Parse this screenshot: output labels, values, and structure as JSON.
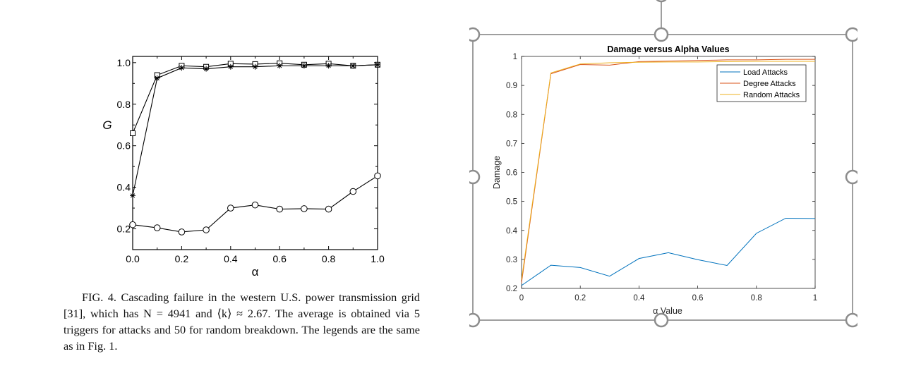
{
  "figure_caption": "FIG. 4. Cascading failure in the western U.S. power transmission grid [31], which has N = 4941 and ⟨k⟩ ≈ 2.67. The average is obtained via 5 triggers for attacks and 50 for random breakdown. The legends are the same as in Fig. 1.",
  "chart_data": [
    {
      "type": "line",
      "title": "",
      "xlabel": "α",
      "ylabel": "G",
      "xlim": [
        0,
        1
      ],
      "ylim": [
        0.1,
        1.03
      ],
      "xticks": [
        "0.0",
        "0.2",
        "0.4",
        "0.6",
        "0.8",
        "1.0"
      ],
      "yticks": [
        "0.2",
        "0.4",
        "0.6",
        "0.8",
        "1.0"
      ],
      "x": [
        0.0,
        0.1,
        0.2,
        0.3,
        0.4,
        0.5,
        0.6,
        0.7,
        0.8,
        0.9,
        1.0
      ],
      "series": [
        {
          "marker": "square",
          "values": [
            0.66,
            0.94,
            0.985,
            0.98,
            0.995,
            0.993,
            0.997,
            0.99,
            0.995,
            0.985,
            0.99
          ]
        },
        {
          "marker": "star",
          "values": [
            0.36,
            0.925,
            0.975,
            0.97,
            0.98,
            0.98,
            0.985,
            0.985,
            0.985,
            0.985,
            0.99
          ]
        },
        {
          "marker": "circle",
          "values": [
            0.22,
            0.205,
            0.185,
            0.195,
            0.3,
            0.315,
            0.295,
            0.297,
            0.295,
            0.38,
            0.455
          ]
        }
      ]
    },
    {
      "type": "line",
      "title": "Damage versus Alpha Values",
      "xlabel": "α Value",
      "ylabel": "Damage",
      "xlim": [
        0,
        1
      ],
      "ylim": [
        0.2,
        1
      ],
      "xticks": [
        "0",
        "0.2",
        "0.4",
        "0.6",
        "0.8",
        "1"
      ],
      "yticks": [
        "0.2",
        "0.3",
        "0.4",
        "0.5",
        "0.6",
        "0.7",
        "0.8",
        "0.9",
        "1"
      ],
      "legend_position": "top-right",
      "x": [
        0.0,
        0.1,
        0.2,
        0.3,
        0.4,
        0.5,
        0.6,
        0.7,
        0.8,
        0.9,
        1.0
      ],
      "series": [
        {
          "name": "Load Attacks",
          "color": "#0072BD",
          "values": [
            0.21,
            0.28,
            0.272,
            0.242,
            0.303,
            0.323,
            0.299,
            0.279,
            0.39,
            0.442,
            0.441
          ]
        },
        {
          "name": "Degree Attacks",
          "color": "#D95319",
          "values": [
            0.22,
            0.94,
            0.972,
            0.97,
            0.982,
            0.984,
            0.986,
            0.988,
            0.988,
            0.99,
            0.99
          ]
        },
        {
          "name": "Random Attacks",
          "color": "#EDB120",
          "values": [
            0.23,
            0.943,
            0.974,
            0.978,
            0.98,
            0.981,
            0.981,
            0.982,
            0.983,
            0.983,
            0.983
          ]
        }
      ]
    }
  ]
}
